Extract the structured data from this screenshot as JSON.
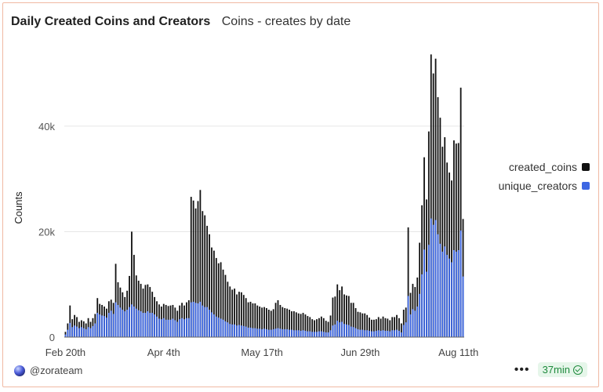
{
  "header": {
    "title": "Daily Created Coins and Creators",
    "subtitle": "Coins - creates by date"
  },
  "footer": {
    "author": "@zorateam",
    "refresh": "37min",
    "more_icon": "more-icon",
    "avatar_icon": "zora-orb-icon",
    "check_icon": "check-circle-icon"
  },
  "chart_data": {
    "type": "bar",
    "ylabel": "Counts",
    "ylim": [
      0,
      55000
    ],
    "yticks": [
      {
        "value": 0,
        "label": "0"
      },
      {
        "value": 20000,
        "label": "20k"
      },
      {
        "value": 40000,
        "label": "40k"
      }
    ],
    "xticks": [
      {
        "index": 0,
        "label": "Feb 20th"
      },
      {
        "index": 43,
        "label": "Apr 4th"
      },
      {
        "index": 86,
        "label": "May 17th"
      },
      {
        "index": 129,
        "label": "Jun 29th"
      },
      {
        "index": 172,
        "label": "Aug 11th"
      }
    ],
    "grid": true,
    "legend_position": "right",
    "colors": {
      "created_coins": "#111111",
      "unique_creators": "#3d67e3",
      "grid": "#e6e6e6",
      "axis": "#666666"
    },
    "series": [
      {
        "name": "created_coins",
        "values": [
          1000,
          2600,
          6000,
          3400,
          4200,
          3800,
          2900,
          3200,
          3000,
          2600,
          3600,
          2900,
          3600,
          4400,
          7400,
          6300,
          6100,
          5800,
          5400,
          6800,
          7100,
          6500,
          13900,
          10400,
          9400,
          8500,
          7600,
          8800,
          11600,
          20000,
          15600,
          11700,
          10700,
          10100,
          9200,
          9900,
          10000,
          9500,
          8600,
          7600,
          6800,
          6200,
          5800,
          6300,
          6100,
          5900,
          6000,
          6100,
          5600,
          5000,
          6000,
          6500,
          6000,
          6600,
          7000,
          26600,
          25900,
          24400,
          25800,
          27900,
          23900,
          23100,
          21100,
          19500,
          17000,
          16400,
          15000,
          14000,
          14200,
          12800,
          11800,
          10500,
          9600,
          9000,
          9200,
          8100,
          8600,
          8500,
          8000,
          7400,
          6600,
          6700,
          6400,
          6400,
          6000,
          5800,
          5600,
          5700,
          5500,
          5200,
          5000,
          5300,
          6500,
          7000,
          6100,
          5700,
          5500,
          5400,
          5200,
          4900,
          4900,
          4700,
          4500,
          4400,
          4600,
          4300,
          4000,
          3800,
          3400,
          3200,
          3400,
          3600,
          3900,
          3600,
          3100,
          2900,
          4100,
          7500,
          7700,
          10000,
          8900,
          9600,
          8100,
          7900,
          7800,
          6500,
          6500,
          5500,
          4800,
          4700,
          4500,
          4500,
          4200,
          3700,
          3300,
          3300,
          3400,
          3800,
          3500,
          3900,
          3600,
          3500,
          3200,
          3800,
          3800,
          4200,
          3600,
          2600,
          5200,
          5600,
          20800,
          8400,
          10100,
          9500,
          11300,
          17900,
          25000,
          34100,
          26100,
          39000,
          53600,
          50000,
          52800,
          45500,
          41600,
          36100,
          37900,
          33100,
          31200,
          29700,
          37300,
          36700,
          36800,
          47300,
          22400
        ]
      },
      {
        "name": "unique_creators",
        "values": [
          500,
          1400,
          2700,
          1900,
          2200,
          2000,
          1700,
          1900,
          1700,
          1500,
          1900,
          1700,
          2100,
          2600,
          4600,
          4300,
          4100,
          4000,
          3700,
          4600,
          5000,
          4400,
          6600,
          6100,
          5600,
          5200,
          4900,
          5200,
          5700,
          6200,
          5800,
          5400,
          5100,
          4900,
          4600,
          4600,
          4900,
          4600,
          4600,
          4300,
          3900,
          3500,
          3400,
          3600,
          3300,
          3300,
          3300,
          3500,
          3200,
          2900,
          3400,
          3600,
          3400,
          3600,
          3600,
          6600,
          6700,
          6500,
          6400,
          6700,
          6000,
          5700,
          5700,
          5200,
          4700,
          4300,
          3900,
          3700,
          3500,
          3300,
          3000,
          2800,
          2500,
          2400,
          2400,
          2200,
          2300,
          2200,
          2100,
          2000,
          1800,
          1800,
          1700,
          1700,
          1600,
          1600,
          1500,
          1600,
          1500,
          1400,
          1400,
          1500,
          1600,
          1700,
          1600,
          1500,
          1500,
          1500,
          1400,
          1400,
          1300,
          1300,
          1300,
          1200,
          1300,
          1200,
          1100,
          1100,
          1000,
          1000,
          1000,
          1100,
          1100,
          1000,
          900,
          900,
          1300,
          2200,
          2400,
          3100,
          2800,
          2900,
          2500,
          2400,
          2300,
          2000,
          1900,
          1700,
          1500,
          1400,
          1400,
          1300,
          1300,
          1200,
          1100,
          1100,
          1200,
          1300,
          1200,
          1300,
          1200,
          1200,
          1100,
          1300,
          1300,
          1400,
          1200,
          900,
          2300,
          2800,
          7800,
          4300,
          5300,
          5000,
          5800,
          8200,
          11900,
          16600,
          12400,
          17500,
          22500,
          21300,
          22200,
          19500,
          17700,
          16200,
          17200,
          15600,
          14900,
          14200,
          16500,
          16200,
          16500,
          20200,
          11500
        ]
      }
    ]
  }
}
